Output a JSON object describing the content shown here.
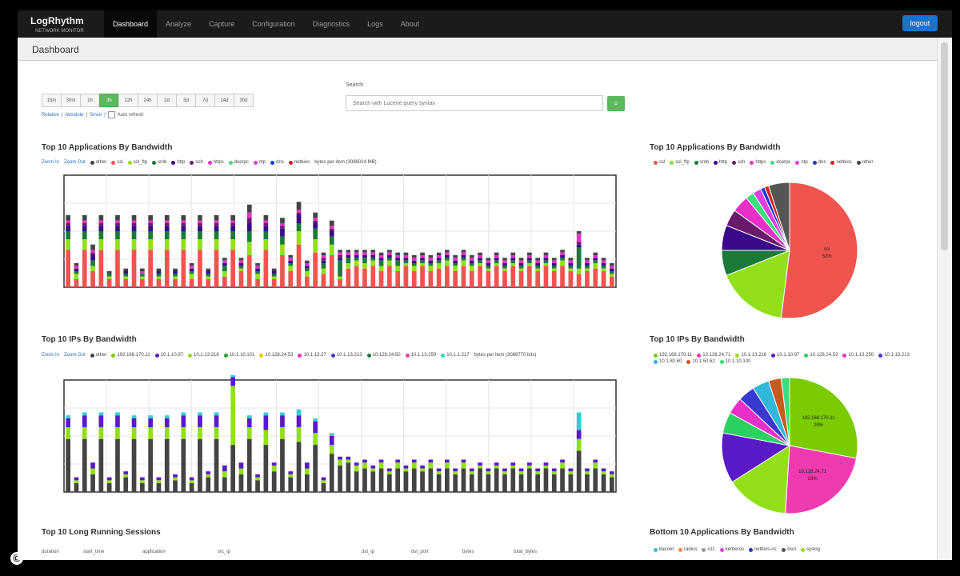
{
  "brand": {
    "name": "LogRhythm",
    "sub": "NETWORK MONITOR"
  },
  "nav": [
    "Dashboard",
    "Analyze",
    "Capture",
    "Configuration",
    "Diagnostics",
    "Logs",
    "About"
  ],
  "active_nav": "Dashboard",
  "logout_label": "logout",
  "page_title": "Dashboard",
  "time_buttons": [
    "15m",
    "30m",
    "1h",
    "3h",
    "12h",
    "24h",
    "2d",
    "3d",
    "7d",
    "14d",
    "30d"
  ],
  "active_time": "3h",
  "time_links": {
    "relative": "Relative",
    "absolute": "Absolute",
    "since": "Since",
    "auto_refresh": "Auto refresh"
  },
  "search": {
    "label": "Search",
    "placeholder": "Search with Lucene query syntax"
  },
  "colors": {
    "accent": "#5cb85c",
    "nav_bg": "#1b1b1b",
    "logout": "#1a73c9"
  },
  "sections": {
    "apps_bar": "Top 10 Applications By Bandwidth",
    "apps_pie": "Top 10 Applications By Bandwidth",
    "ips_bar": "Top 10 IPs By Bandwidth",
    "ips_pie": "Top 10 IPs By Bandwidth",
    "sessions": "Top 10 Long Running Sessions",
    "bottom_apps": "Bottom 10 Applications By Bandwidth"
  },
  "zoom": {
    "in": "Zoom In",
    "out": "Zoom Out"
  },
  "apps_legend": [
    {
      "name": "other",
      "color": "#444444"
    },
    {
      "name": "ssl",
      "color": "#f0544f"
    },
    {
      "name": "ssl_ftp",
      "color": "#91e01a"
    },
    {
      "name": "smb",
      "color": "#1a7a3a"
    },
    {
      "name": "http",
      "color": "#3b0a8a"
    },
    {
      "name": "ssh",
      "color": "#6a1a6a"
    },
    {
      "name": "https",
      "color": "#e830c8"
    },
    {
      "name": "dcerpc",
      "color": "#39e07a"
    },
    {
      "name": "ntp",
      "color": "#e040e0"
    },
    {
      "name": "dns",
      "color": "#1a3ad0"
    },
    {
      "name": "netbios",
      "color": "#d42020"
    }
  ],
  "apps_bar_note": "bytes per item (3086024 MB)",
  "ips_legend": [
    {
      "name": "other",
      "color": "#444444"
    },
    {
      "name": "192.168.170.11",
      "color": "#7acc00"
    },
    {
      "name": "10.1.10.97",
      "color": "#5a1ac8"
    },
    {
      "name": "10.1.13.216",
      "color": "#91e01a"
    },
    {
      "name": "10.1.10.101",
      "color": "#2aa02a"
    },
    {
      "name": "10.128.24.53",
      "color": "#f0c800"
    },
    {
      "name": "10.1.13.27",
      "color": "#e830c8"
    },
    {
      "name": "10.1.13.213",
      "color": "#3a3ad0"
    },
    {
      "name": "10.128.24.50",
      "color": "#1a7a3a"
    },
    {
      "name": "10.1.13.250",
      "color": "#f03a9a"
    },
    {
      "name": "10.1.1.217",
      "color": "#30d0d0"
    }
  ],
  "ips_bar_note": "bytes per item (3086770 bits)",
  "bottom_legend": [
    {
      "name": "bacnet",
      "color": "#30c0e0"
    },
    {
      "name": "radius",
      "color": "#f08a3a"
    },
    {
      "name": "x11",
      "color": "#999999"
    },
    {
      "name": "kerberos",
      "color": "#e040e0"
    },
    {
      "name": "netbios-ns",
      "color": "#1a3ad0"
    },
    {
      "name": "stun",
      "color": "#555555"
    },
    {
      "name": "syslog",
      "color": "#91e01a"
    }
  ],
  "session_columns": [
    "duration",
    "start_time",
    "application",
    "src_ip",
    "dst_ip",
    "dst_port",
    "bytes",
    "total_bytes"
  ],
  "chart_data": [
    {
      "type": "bar",
      "title": "Top 10 Applications By Bandwidth",
      "stacked": true,
      "series_names": [
        "ssl",
        "ssl_ftp",
        "smb",
        "http",
        "ssh",
        "https",
        "other"
      ],
      "values": [
        [
          14,
          4,
          3,
          2,
          1,
          1,
          2
        ],
        [
          3,
          2,
          1,
          1,
          0,
          1,
          1
        ],
        [
          14,
          4,
          3,
          2,
          1,
          1,
          2
        ],
        [
          6,
          2,
          2,
          2,
          1,
          1,
          2
        ],
        [
          14,
          4,
          3,
          2,
          1,
          1,
          2
        ],
        [
          3,
          1,
          1,
          0,
          0,
          0,
          1
        ],
        [
          14,
          4,
          3,
          2,
          1,
          1,
          2
        ],
        [
          3,
          1,
          1,
          1,
          0,
          0,
          1
        ],
        [
          14,
          4,
          3,
          2,
          1,
          1,
          2
        ],
        [
          3,
          1,
          1,
          0,
          0,
          1,
          1
        ],
        [
          14,
          4,
          3,
          2,
          1,
          1,
          2
        ],
        [
          3,
          1,
          1,
          1,
          0,
          0,
          1
        ],
        [
          14,
          4,
          3,
          2,
          1,
          1,
          2
        ],
        [
          3,
          1,
          1,
          1,
          0,
          0,
          1
        ],
        [
          14,
          4,
          3,
          2,
          1,
          1,
          2
        ],
        [
          3,
          2,
          1,
          1,
          0,
          1,
          1
        ],
        [
          14,
          4,
          3,
          2,
          1,
          1,
          2
        ],
        [
          3,
          1,
          1,
          1,
          0,
          0,
          1
        ],
        [
          14,
          4,
          3,
          2,
          1,
          1,
          2
        ],
        [
          4,
          2,
          2,
          1,
          0,
          1,
          1
        ],
        [
          14,
          4,
          3,
          2,
          1,
          1,
          2
        ],
        [
          6,
          1,
          1,
          1,
          0,
          1,
          1
        ],
        [
          12,
          5,
          4,
          3,
          2,
          2,
          3
        ],
        [
          3,
          2,
          1,
          1,
          0,
          1,
          1
        ],
        [
          14,
          4,
          3,
          2,
          1,
          1,
          2
        ],
        [
          3,
          1,
          1,
          1,
          0,
          0,
          1
        ],
        [
          12,
          4,
          3,
          3,
          1,
          1,
          2
        ],
        [
          6,
          2,
          1,
          1,
          0,
          1,
          1
        ],
        [
          16,
          5,
          3,
          3,
          1,
          1,
          3
        ],
        [
          4,
          2,
          1,
          1,
          0,
          1,
          1
        ],
        [
          13,
          5,
          4,
          2,
          1,
          1,
          2
        ],
        [
          5,
          2,
          2,
          1,
          1,
          1,
          1
        ],
        [
          12,
          4,
          3,
          2,
          1,
          1,
          2
        ],
        [
          3,
          1,
          6,
          1,
          1,
          1,
          1
        ],
        [
          7,
          2,
          2,
          1,
          0,
          1,
          1
        ],
        [
          8,
          2,
          1,
          1,
          0,
          1,
          1
        ],
        [
          7,
          2,
          2,
          1,
          0,
          1,
          1
        ],
        [
          8,
          2,
          1,
          1,
          0,
          1,
          1
        ],
        [
          6,
          2,
          2,
          1,
          0,
          1,
          1
        ],
        [
          8,
          2,
          1,
          1,
          0,
          1,
          1
        ],
        [
          6,
          2,
          2,
          1,
          0,
          1,
          1
        ],
        [
          8,
          1,
          1,
          1,
          0,
          1,
          1
        ],
        [
          6,
          2,
          1,
          1,
          0,
          1,
          1
        ],
        [
          8,
          1,
          1,
          1,
          0,
          1,
          1
        ],
        [
          6,
          2,
          1,
          1,
          0,
          1,
          1
        ],
        [
          7,
          2,
          1,
          1,
          0,
          1,
          1
        ],
        [
          8,
          2,
          1,
          1,
          0,
          1,
          1
        ],
        [
          6,
          2,
          1,
          1,
          0,
          1,
          1
        ],
        [
          8,
          2,
          1,
          1,
          0,
          1,
          1
        ],
        [
          6,
          2,
          1,
          1,
          0,
          1,
          1
        ],
        [
          8,
          1,
          1,
          1,
          0,
          1,
          1
        ],
        [
          6,
          1,
          1,
          1,
          0,
          1,
          1
        ],
        [
          8,
          1,
          1,
          1,
          0,
          1,
          1
        ],
        [
          6,
          1,
          1,
          1,
          0,
          1,
          1
        ],
        [
          8,
          1,
          1,
          1,
          0,
          1,
          1
        ],
        [
          6,
          1,
          1,
          1,
          0,
          1,
          1
        ],
        [
          8,
          1,
          1,
          1,
          0,
          1,
          1
        ],
        [
          6,
          1,
          1,
          1,
          0,
          1,
          1
        ],
        [
          8,
          1,
          1,
          1,
          0,
          1,
          1
        ],
        [
          6,
          1,
          1,
          1,
          0,
          1,
          1
        ],
        [
          8,
          2,
          1,
          1,
          0,
          1,
          1
        ],
        [
          6,
          1,
          1,
          1,
          0,
          1,
          1
        ],
        [
          5,
          2,
          8,
          1,
          1,
          3,
          1
        ],
        [
          6,
          1,
          1,
          1,
          0,
          1,
          1
        ],
        [
          7,
          2,
          1,
          1,
          0,
          1,
          1
        ],
        [
          6,
          1,
          1,
          1,
          0,
          1,
          1
        ],
        [
          4,
          1,
          1,
          1,
          0,
          1,
          1
        ]
      ],
      "ymax": 42
    },
    {
      "type": "pie",
      "title": "Top 10 Applications By Bandwidth",
      "slices": [
        {
          "label": "ssl",
          "value": 52,
          "color": "#f0544f"
        },
        {
          "label": "ssl_ftp",
          "value": 17,
          "color": "#91e01a"
        },
        {
          "label": "smb",
          "value": 6,
          "color": "#1a7a3a"
        },
        {
          "label": "http",
          "value": 6,
          "color": "#3b0a8a"
        },
        {
          "label": "ssh",
          "value": 4,
          "color": "#6a1a6a"
        },
        {
          "label": "https",
          "value": 4,
          "color": "#e830c8"
        },
        {
          "label": "dcerpc",
          "value": 2,
          "color": "#39e07a"
        },
        {
          "label": "ntp",
          "value": 2,
          "color": "#e040e0"
        },
        {
          "label": "dns",
          "value": 1,
          "color": "#1a3ad0"
        },
        {
          "label": "netbios",
          "value": 1,
          "color": "#d42020"
        },
        {
          "label": "other",
          "value": 5,
          "color": "#555555"
        }
      ],
      "labels_shown": [
        {
          "label": "ssl",
          "pct": "52%"
        }
      ]
    },
    {
      "type": "bar",
      "title": "Top 10 IPs By Bandwidth",
      "stacked": true,
      "series_names": [
        "other",
        "10.1.13.216",
        "10.1.10.97",
        "10.1.1.217"
      ],
      "values": [
        [
          18,
          4,
          3,
          1
        ],
        [
          3,
          1,
          1,
          0
        ],
        [
          18,
          4,
          4,
          1
        ],
        [
          6,
          2,
          2,
          0
        ],
        [
          18,
          4,
          4,
          1
        ],
        [
          3,
          1,
          1,
          0
        ],
        [
          18,
          4,
          4,
          1
        ],
        [
          5,
          1,
          1,
          0
        ],
        [
          18,
          4,
          3,
          1
        ],
        [
          3,
          1,
          1,
          0
        ],
        [
          18,
          4,
          3,
          1
        ],
        [
          3,
          1,
          1,
          0
        ],
        [
          18,
          4,
          3,
          1
        ],
        [
          4,
          1,
          1,
          0
        ],
        [
          18,
          4,
          4,
          1
        ],
        [
          3,
          1,
          1,
          0
        ],
        [
          18,
          4,
          4,
          1
        ],
        [
          5,
          1,
          1,
          0
        ],
        [
          18,
          4,
          4,
          1
        ],
        [
          5,
          2,
          2,
          0
        ],
        [
          16,
          20,
          3,
          1
        ],
        [
          6,
          2,
          2,
          0
        ],
        [
          18,
          4,
          3,
          1
        ],
        [
          4,
          1,
          1,
          0
        ],
        [
          16,
          5,
          5,
          1
        ],
        [
          7,
          2,
          1,
          0
        ],
        [
          18,
          4,
          4,
          1
        ],
        [
          5,
          1,
          1,
          0
        ],
        [
          17,
          5,
          4,
          2
        ],
        [
          6,
          2,
          2,
          0
        ],
        [
          16,
          4,
          4,
          1
        ],
        [
          3,
          1,
          1,
          0
        ],
        [
          13,
          3,
          3,
          1
        ],
        [
          9,
          2,
          1,
          0
        ],
        [
          10,
          1,
          1,
          0
        ],
        [
          7,
          2,
          1,
          0
        ],
        [
          8,
          2,
          1,
          0
        ],
        [
          7,
          1,
          1,
          0
        ],
        [
          8,
          2,
          1,
          0
        ],
        [
          6,
          1,
          1,
          0
        ],
        [
          8,
          2,
          1,
          0
        ],
        [
          7,
          1,
          1,
          0
        ],
        [
          8,
          2,
          1,
          0
        ],
        [
          7,
          1,
          1,
          0
        ],
        [
          8,
          2,
          1,
          0
        ],
        [
          6,
          1,
          1,
          0
        ],
        [
          8,
          2,
          1,
          0
        ],
        [
          6,
          1,
          1,
          0
        ],
        [
          8,
          2,
          1,
          0
        ],
        [
          6,
          1,
          1,
          0
        ],
        [
          8,
          1,
          1,
          0
        ],
        [
          6,
          1,
          1,
          0
        ],
        [
          8,
          1,
          1,
          0
        ],
        [
          6,
          1,
          1,
          0
        ],
        [
          8,
          1,
          1,
          0
        ],
        [
          6,
          1,
          1,
          0
        ],
        [
          8,
          1,
          1,
          0
        ],
        [
          6,
          1,
          1,
          0
        ],
        [
          8,
          1,
          1,
          0
        ],
        [
          6,
          1,
          1,
          0
        ],
        [
          8,
          2,
          1,
          0
        ],
        [
          6,
          1,
          1,
          0
        ],
        [
          14,
          4,
          3,
          6
        ],
        [
          6,
          1,
          1,
          0
        ],
        [
          8,
          2,
          1,
          0
        ],
        [
          6,
          1,
          1,
          0
        ],
        [
          5,
          1,
          1,
          0
        ]
      ],
      "ymax": 38
    },
    {
      "type": "pie",
      "title": "Top 10 IPs By Bandwidth",
      "slices": [
        {
          "label": "192.168.170.11",
          "value": 28,
          "color": "#7acc00"
        },
        {
          "label": "10.128.24.71",
          "value": 23,
          "color": "#f03ab0"
        },
        {
          "label": "10.1.13.216",
          "value": 15,
          "color": "#91e01a"
        },
        {
          "label": "10.1.10.97",
          "value": 12,
          "color": "#5a1ac8"
        },
        {
          "label": "10.128.24.53",
          "value": 5,
          "color": "#2ad060"
        },
        {
          "label": "10.1.13.250",
          "value": 4,
          "color": "#e830c8"
        },
        {
          "label": "10.1.13.213",
          "value": 4,
          "color": "#3a3ad0"
        },
        {
          "label": "10.1.80.60",
          "value": 4,
          "color": "#30b8d8"
        },
        {
          "label": "10.1.50.62",
          "value": 3,
          "color": "#c85a1a"
        },
        {
          "label": "10.1.10.100",
          "value": 2,
          "color": "#39e07a"
        }
      ],
      "labels_shown": [
        {
          "label": "192.168.170.11",
          "pct": "28%"
        },
        {
          "label": "10.128.24.71",
          "pct": "23%"
        }
      ]
    }
  ]
}
